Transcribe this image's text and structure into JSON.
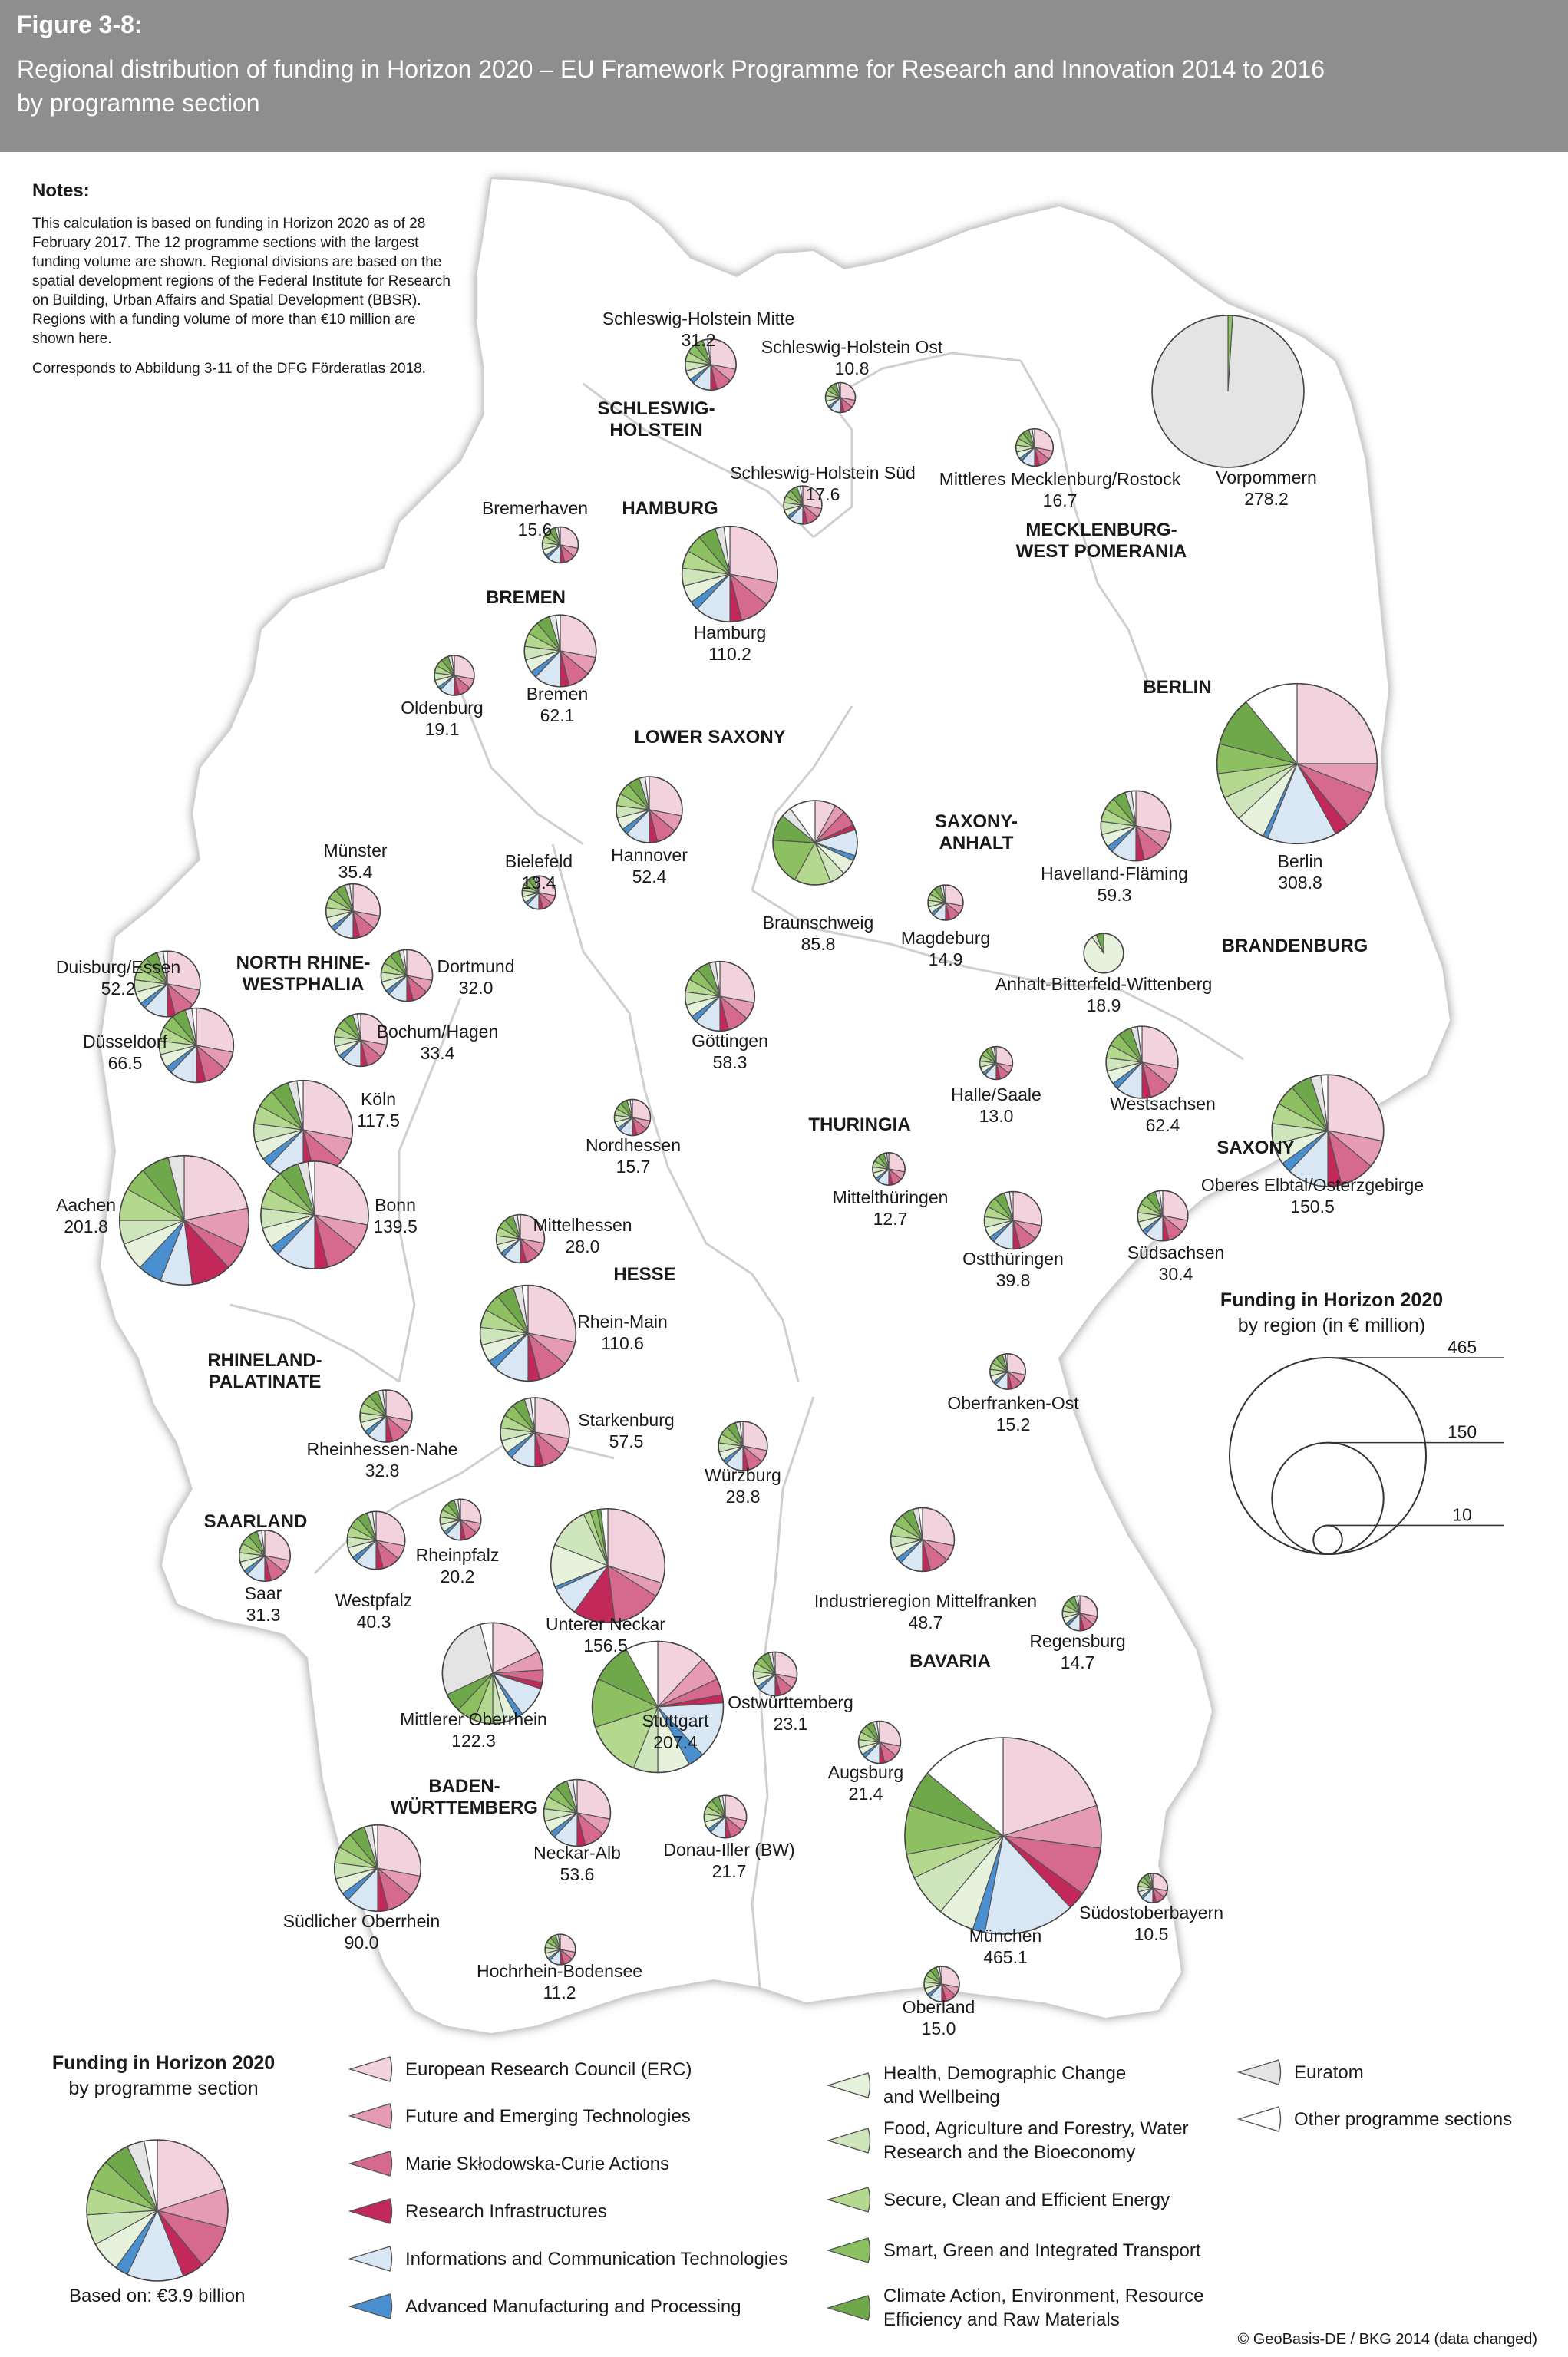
{
  "header": {
    "figure": "Figure 3-8:",
    "title_line1": "Regional distribution of funding in Horizon 2020 – EU Framework Programme for Research and Innovation 2014 to 2016",
    "title_line2": "by programme section"
  },
  "notes": {
    "heading": "Notes:",
    "text": "This calculation is based on funding in Horizon 2020 as of 28 February 2017. The 12 programme sections with the largest funding volume are shown. Regional divisions are based on the spatial development regions of the Federal Institute for Research on Building, Urban Affairs and Spatial Development (BBSR). Regions with a funding volume of more than €10 million are shown here.",
    "source": "Corresponds to Abbildung 3-11 of the DFG Förderatlas 2018."
  },
  "states": [
    {
      "line1": "SCHLESWIG-",
      "line2": "HOLSTEIN"
    },
    {
      "line1": "HAMBURG",
      "line2": ""
    },
    {
      "line1": "MECKLENBURG-",
      "line2": "WEST POMERANIA"
    },
    {
      "line1": "BREMEN",
      "line2": ""
    },
    {
      "line1": "LOWER SAXONY",
      "line2": ""
    },
    {
      "line1": "BERLIN",
      "line2": ""
    },
    {
      "line1": "SAXONY-",
      "line2": "ANHALT"
    },
    {
      "line1": "BRANDENBURG",
      "line2": ""
    },
    {
      "line1": "NORTH RHINE-",
      "line2": "WESTPHALIA"
    },
    {
      "line1": "THURINGIA",
      "line2": ""
    },
    {
      "line1": "SAXONY",
      "line2": ""
    },
    {
      "line1": "HESSE",
      "line2": ""
    },
    {
      "line1": "RHINELAND-",
      "line2": "PALATINATE"
    },
    {
      "line1": "SAARLAND",
      "line2": ""
    },
    {
      "line1": "BAVARIA",
      "line2": ""
    },
    {
      "line1": "BADEN-",
      "line2": "WÜRTTEMBERG"
    }
  ],
  "regions": [
    {
      "name": "Schleswig-Holstein Mitte",
      "value": "31.2"
    },
    {
      "name": "Schleswig-Holstein Ost",
      "value": "10.8"
    },
    {
      "name": "Schleswig-Holstein Süd",
      "value": "17.6"
    },
    {
      "name": "Mittleres Mecklenburg/Rostock",
      "value": "16.7"
    },
    {
      "name": "Vorpommern",
      "value": "278.2"
    },
    {
      "name": "Bremerhaven",
      "value": "15.6"
    },
    {
      "name": "Hamburg",
      "value": "110.2"
    },
    {
      "name": "Bremen",
      "value": "62.1"
    },
    {
      "name": "Oldenburg",
      "value": "19.1"
    },
    {
      "name": "Berlin",
      "value": "308.8"
    },
    {
      "name": "Havelland-Fläming",
      "value": "59.3"
    },
    {
      "name": "Hannover",
      "value": "52.4"
    },
    {
      "name": "Braunschweig",
      "value": "85.8"
    },
    {
      "name": "Bielefeld",
      "value": "13.4"
    },
    {
      "name": "Münster",
      "value": "35.4"
    },
    {
      "name": "Magdeburg",
      "value": "14.9"
    },
    {
      "name": "Anhalt-Bitterfeld-Wittenberg",
      "value": "18.9"
    },
    {
      "name": "Duisburg/Essen",
      "value": "52.2"
    },
    {
      "name": "Dortmund",
      "value": "32.0"
    },
    {
      "name": "Göttingen",
      "value": "58.3"
    },
    {
      "name": "Düsseldorf",
      "value": "66.5"
    },
    {
      "name": "Bochum/Hagen",
      "value": "33.4"
    },
    {
      "name": "Köln",
      "value": "117.5"
    },
    {
      "name": "Halle/Saale",
      "value": "13.0"
    },
    {
      "name": "Westsachsen",
      "value": "62.4"
    },
    {
      "name": "Nordhessen",
      "value": "15.7"
    },
    {
      "name": "Oberes Elbtal/Osterzgebirge",
      "value": "150.5"
    },
    {
      "name": "Mittelthüringen",
      "value": "12.7"
    },
    {
      "name": "Aachen",
      "value": "201.8"
    },
    {
      "name": "Bonn",
      "value": "139.5"
    },
    {
      "name": "Mittelhessen",
      "value": "28.0"
    },
    {
      "name": "Ostthüringen",
      "value": "39.8"
    },
    {
      "name": "Südsachsen",
      "value": "30.4"
    },
    {
      "name": "Rhein-Main",
      "value": "110.6"
    },
    {
      "name": "Oberfranken-Ost",
      "value": "15.2"
    },
    {
      "name": "Rheinhessen-Nahe",
      "value": "32.8"
    },
    {
      "name": "Starkenburg",
      "value": "57.5"
    },
    {
      "name": "Würzburg",
      "value": "28.8"
    },
    {
      "name": "Saar",
      "value": "31.3"
    },
    {
      "name": "Westpfalz",
      "value": "40.3"
    },
    {
      "name": "Rheinpfalz",
      "value": "20.2"
    },
    {
      "name": "Unterer Neckar",
      "value": "156.5"
    },
    {
      "name": "Industrieregion Mittelfranken",
      "value": "48.7"
    },
    {
      "name": "Regensburg",
      "value": "14.7"
    },
    {
      "name": "Mittlerer Oberrhein",
      "value": "122.3"
    },
    {
      "name": "Stuttgart",
      "value": "207.4"
    },
    {
      "name": "Ostwürttemberg",
      "value": "23.1"
    },
    {
      "name": "Augsburg",
      "value": "21.4"
    },
    {
      "name": "Neckar-Alb",
      "value": "53.6"
    },
    {
      "name": "Donau-Iller (BW)",
      "value": "21.7"
    },
    {
      "name": "München",
      "value": "465.1"
    },
    {
      "name": "Südostoberbayern",
      "value": "10.5"
    },
    {
      "name": "Südlicher Oberrhein",
      "value": "90.0"
    },
    {
      "name": "Hochrhein-Bodensee",
      "value": "11.2"
    },
    {
      "name": "Oberland",
      "value": "15.0"
    }
  ],
  "legend": {
    "title_bold": "Funding in Horizon 2020",
    "title_rest": "by programme section",
    "based_on": "Based on: €3.9 billion",
    "items": [
      {
        "label": "European Research Council (ERC)",
        "label2": "",
        "color": "#f2d3dd"
      },
      {
        "label": "Future and Emerging Technologies",
        "label2": "",
        "color": "#e59bb3"
      },
      {
        "label": "Marie Skłodowska-Curie Actions",
        "label2": "",
        "color": "#d66a8e"
      },
      {
        "label": "Research Infrastructures",
        "label2": "",
        "color": "#c2285a"
      },
      {
        "label": "Informations and Communication Technologies",
        "label2": "",
        "color": "#d9e6f4"
      },
      {
        "label": "Advanced Manufacturing and Processing",
        "label2": "",
        "color": "#4a90d0"
      },
      {
        "label": "Health, Demographic Change",
        "label2": "and Wellbeing",
        "color": "#e6f2db"
      },
      {
        "label": "Food, Agriculture and Forestry, Water",
        "label2": "Research and the Bioeconomy",
        "color": "#cfe6bd"
      },
      {
        "label": "Secure, Clean and Efficient Energy",
        "label2": "",
        "color": "#b4d98e"
      },
      {
        "label": "Smart, Green and Integrated Transport",
        "label2": "",
        "color": "#8cc060"
      },
      {
        "label": "Climate Action, Environment, Resource",
        "label2": "Efficiency and Raw Materials",
        "color": "#6fa84a"
      },
      {
        "label": "Euratom",
        "label2": "",
        "color": "#e4e4e4"
      },
      {
        "label": "Other programme sections",
        "label2": "",
        "color": "#ffffff"
      }
    ]
  },
  "scale_legend": {
    "title_bold": "Funding in Horizon 2020",
    "title_rest": "by region (in € million)",
    "values": [
      "465",
      "150",
      "10"
    ]
  },
  "copyright": "© GeoBasis-DE / BKG 2014 (data changed)"
}
